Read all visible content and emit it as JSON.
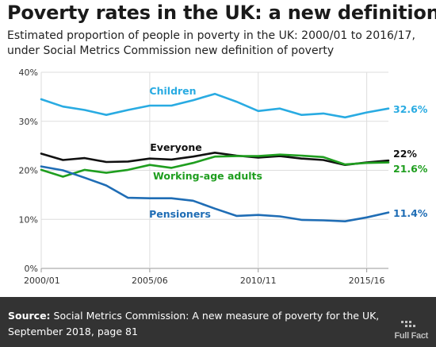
{
  "title": "Poverty rates in the UK: a new definition",
  "subtitle": "Estimated proportion of people in poverty in the UK: 2000/01 to 2016/17, under Social Metrics Commission new definition of poverty",
  "footer": {
    "source_label": "Source:",
    "source_text": "Social Metrics Commission: A new measure of poverty for the UK, September 2018, page 81",
    "logo_text": "Full Fact"
  },
  "colors": {
    "children": "#29abe2",
    "everyone": "#111111",
    "working_age": "#1f9e1f",
    "pensioners": "#1f6db5",
    "grid": "#dddddd",
    "footer_bg": "#333333"
  },
  "chart_data": {
    "type": "line",
    "x": [
      "2000/01",
      "2001/02",
      "2002/03",
      "2003/04",
      "2004/05",
      "2005/06",
      "2006/07",
      "2007/08",
      "2008/09",
      "2009/10",
      "2010/11",
      "2011/12",
      "2012/13",
      "2013/14",
      "2014/15",
      "2015/16",
      "2016/17"
    ],
    "x_tick_labels": [
      "2000/01",
      "2005/06",
      "2010/11",
      "2015/16"
    ],
    "y_tick_labels": [
      "40%",
      "30%",
      "20%",
      "10%",
      "0%"
    ],
    "ylim": [
      0,
      40
    ],
    "grid": true,
    "series": [
      {
        "key": "children",
        "name": "Children",
        "end_label": "32.6%",
        "values": [
          34.5,
          33.0,
          32.3,
          31.3,
          32.3,
          33.2,
          33.2,
          34.3,
          35.6,
          34.0,
          32.1,
          32.6,
          31.3,
          31.6,
          30.8,
          31.8,
          32.6
        ]
      },
      {
        "key": "everyone",
        "name": "Everyone",
        "end_label": "22%",
        "values": [
          23.4,
          22.1,
          22.5,
          21.7,
          21.8,
          22.4,
          22.2,
          22.8,
          23.6,
          23.0,
          22.6,
          22.9,
          22.4,
          22.1,
          21.1,
          21.6,
          22.0
        ]
      },
      {
        "key": "working_age",
        "name": "Working-age adults",
        "end_label": "21.6%",
        "values": [
          20.1,
          18.7,
          20.1,
          19.5,
          20.1,
          21.1,
          20.5,
          21.5,
          22.8,
          22.9,
          22.9,
          23.2,
          23.0,
          22.7,
          21.2,
          21.5,
          21.6
        ]
      },
      {
        "key": "pensioners",
        "name": "Pensioners",
        "end_label": "11.4%",
        "values": [
          20.8,
          20.0,
          18.5,
          16.9,
          14.4,
          14.3,
          14.3,
          13.8,
          12.2,
          10.7,
          10.9,
          10.6,
          9.9,
          9.8,
          9.6,
          10.4,
          11.4
        ]
      }
    ]
  }
}
